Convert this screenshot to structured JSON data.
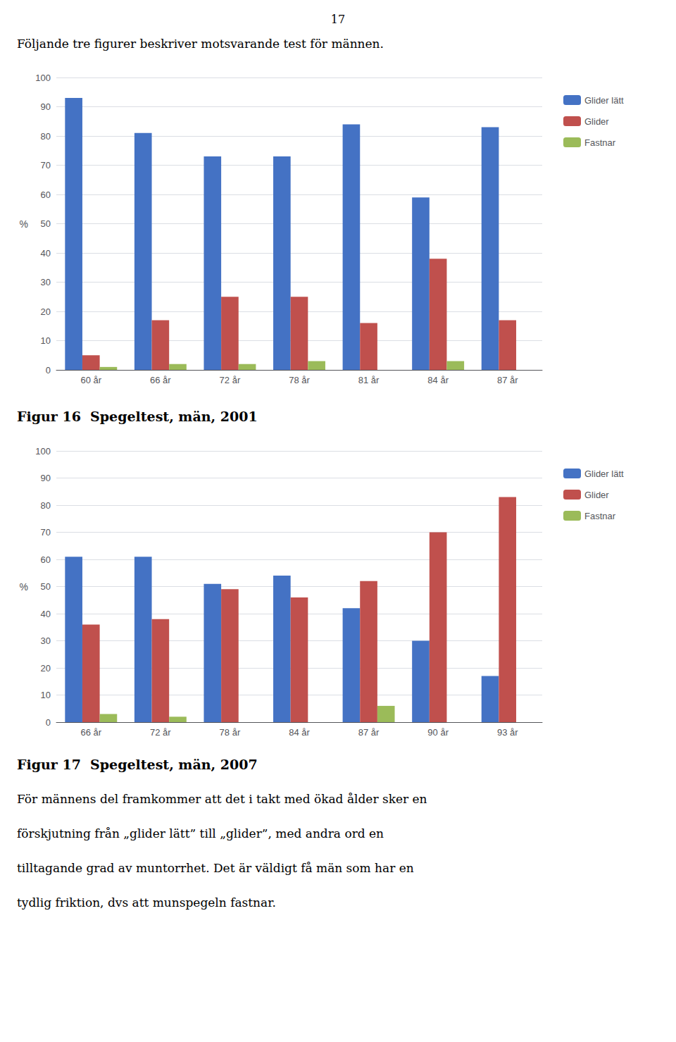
{
  "page_number": "17",
  "intro_text": "Följande tre figurer beskriver motsvarande test för männen.",
  "chart_data": [
    {
      "type": "bar",
      "title": "Figur 16  Spegeltest, män, 2001",
      "categories": [
        "60 år",
        "66 år",
        "72 år",
        "78 år",
        "81 år",
        "84 år",
        "87 år"
      ],
      "series": [
        {
          "name": "Glider lätt",
          "color": "#4472C4",
          "values": [
            93,
            81,
            73,
            73,
            84,
            59,
            83
          ]
        },
        {
          "name": "Glider",
          "color": "#C0504D",
          "values": [
            5,
            17,
            25,
            25,
            16,
            38,
            17
          ]
        },
        {
          "name": "Fastnar",
          "color": "#9BBB59",
          "values": [
            1,
            2,
            2,
            3,
            0,
            3,
            0
          ]
        }
      ],
      "ylabel": "%",
      "ylim": [
        0,
        100
      ],
      "yticks": [
        0,
        10,
        20,
        30,
        40,
        50,
        60,
        70,
        80,
        90,
        100
      ],
      "grid": true,
      "legend": "right"
    },
    {
      "type": "bar",
      "title": "Figur 17  Spegeltest, män, 2007",
      "categories": [
        "66 år",
        "72 år",
        "78 år",
        "84 år",
        "87 år",
        "90 år",
        "93 år"
      ],
      "series": [
        {
          "name": "Glider lätt",
          "color": "#4472C4",
          "values": [
            61,
            61,
            51,
            54,
            42,
            30,
            17
          ]
        },
        {
          "name": "Glider",
          "color": "#C0504D",
          "values": [
            36,
            38,
            49,
            46,
            52,
            70,
            83
          ]
        },
        {
          "name": "Fastnar",
          "color": "#9BBB59",
          "values": [
            3,
            2,
            0,
            0,
            6,
            0,
            0
          ]
        }
      ],
      "ylabel": "%",
      "ylim": [
        0,
        100
      ],
      "yticks": [
        0,
        10,
        20,
        30,
        40,
        50,
        60,
        70,
        80,
        90,
        100
      ],
      "grid": true,
      "legend": "right"
    }
  ],
  "body_text": [
    "För männens del framkommer att det i takt med ökad ålder sker en",
    "förskjutning från „glider lätt” till „glider”, med andra ord en",
    "tilltagande grad av muntorrhet. Det är väldigt få män som har en",
    "tydlig friktion, dvs att munspegeln fastnar."
  ]
}
